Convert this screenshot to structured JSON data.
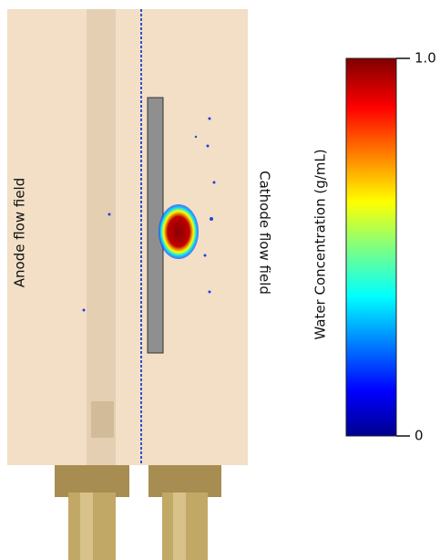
{
  "labels": {
    "anode": "Anode flow field",
    "cathode": "Cathode flow field"
  },
  "colorbar": {
    "title": "Water Concentration (g/mL)",
    "range": [
      0,
      1
    ],
    "ticks": [
      0,
      {
        "value": 1,
        "label": "1.0"
      }
    ]
  }
}
